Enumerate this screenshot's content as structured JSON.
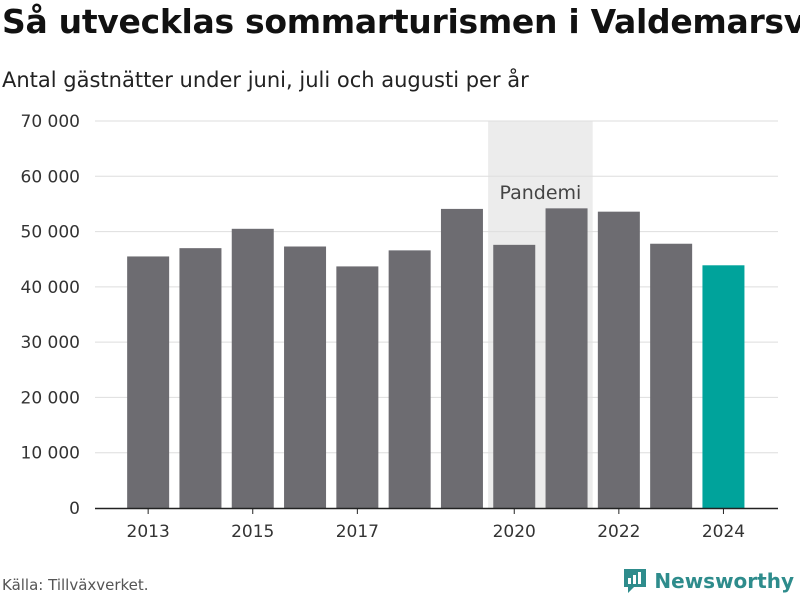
{
  "title": "Så utvecklas sommarturismen i Valdemarsvik",
  "subtitle": "Antal gästnätter under juni, juli och augusti per år",
  "source": "Källa: Tillväxverket.",
  "brand": "Newsworthy",
  "colors": {
    "bar": "#6d6c71",
    "highlight": "#00a39b",
    "band": "#ececec",
    "grid": "#dedede",
    "brand": "#2e8c8c"
  },
  "chart_data": {
    "type": "bar",
    "categories": [
      "2013",
      "2014",
      "2015",
      "2016",
      "2017",
      "2018",
      "2019",
      "2020",
      "2021",
      "2022",
      "2023",
      "2024"
    ],
    "values": [
      45500,
      47000,
      50500,
      47300,
      43700,
      46600,
      54100,
      47600,
      54200,
      53600,
      47800,
      43900
    ],
    "highlight_category": "2024",
    "x_tick_labels": [
      "2013",
      "2015",
      "2017",
      "2020",
      "2022",
      "2024"
    ],
    "y_ticks": [
      0,
      10000,
      20000,
      30000,
      40000,
      50000,
      60000,
      70000
    ],
    "y_tick_labels": [
      "0",
      "10 000",
      "20 000",
      "30 000",
      "40 000",
      "50 000",
      "60 000",
      "70 000"
    ],
    "ylim": [
      0,
      70000
    ],
    "grid": true,
    "annotation": {
      "label": "Pandemi",
      "from": "2020",
      "to": "2021"
    }
  }
}
